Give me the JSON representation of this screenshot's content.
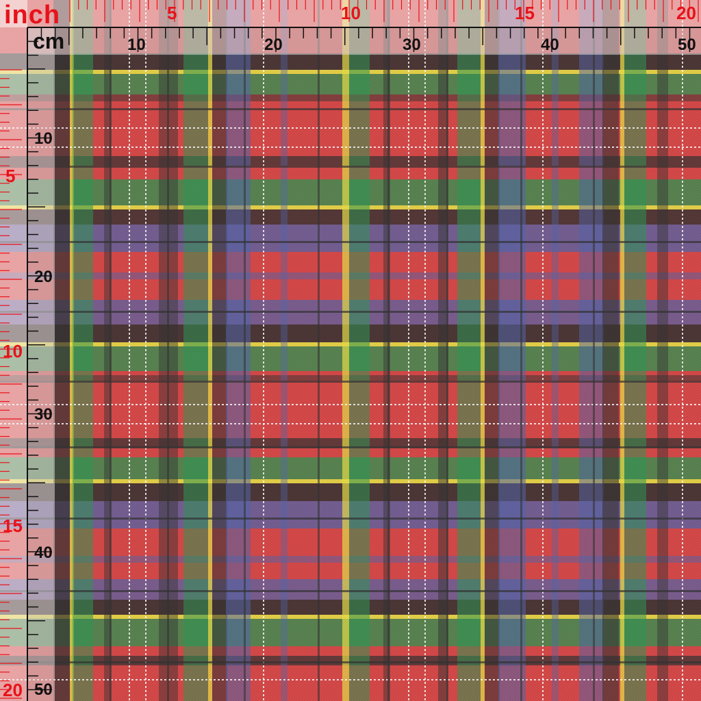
{
  "units": {
    "inch": "inch",
    "cm": "cm"
  },
  "top_inch_labels": [
    "5",
    "10",
    "15",
    "20"
  ],
  "top_cm_labels": [
    "10",
    "20",
    "30",
    "40",
    "50"
  ],
  "left_cm_labels": [
    "10",
    "20",
    "30",
    "40",
    "50"
  ],
  "left_inch_labels": [
    "5",
    "10",
    "15",
    "20"
  ],
  "colors": {
    "red": "#d94a4a",
    "green": "#2f9a55",
    "navy": "#5468ae",
    "black": "#353535",
    "yellow": "#e9e24a",
    "white": "#f4eee8",
    "ruler_line": "#111111",
    "inch_mark": "#e8121a"
  }
}
